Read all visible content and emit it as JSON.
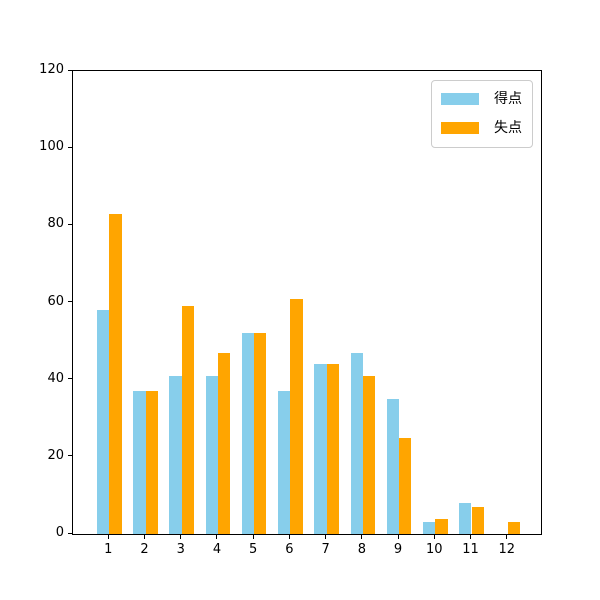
{
  "chart_data": {
    "type": "bar",
    "categories": [
      "1",
      "2",
      "3",
      "4",
      "5",
      "6",
      "7",
      "8",
      "9",
      "10",
      "11",
      "12"
    ],
    "series": [
      {
        "name": "得点",
        "color": "#87CEEB",
        "values": [
          58,
          37,
          41,
          41,
          52,
          37,
          44,
          47,
          35,
          3,
          8,
          0
        ]
      },
      {
        "name": "失点",
        "color": "#FFA500",
        "values": [
          83,
          37,
          59,
          47,
          52,
          61,
          44,
          41,
          25,
          4,
          7,
          3
        ]
      }
    ],
    "title": "",
    "xlabel": "",
    "ylabel": "",
    "ylim": [
      0,
      120
    ],
    "yticks": [
      0,
      20,
      40,
      60,
      80,
      100,
      120
    ],
    "grid": false,
    "legend_position": "upper-right",
    "axis_color": "#000000",
    "tick_label_color": "#000000",
    "background_color": "#ffffff"
  }
}
